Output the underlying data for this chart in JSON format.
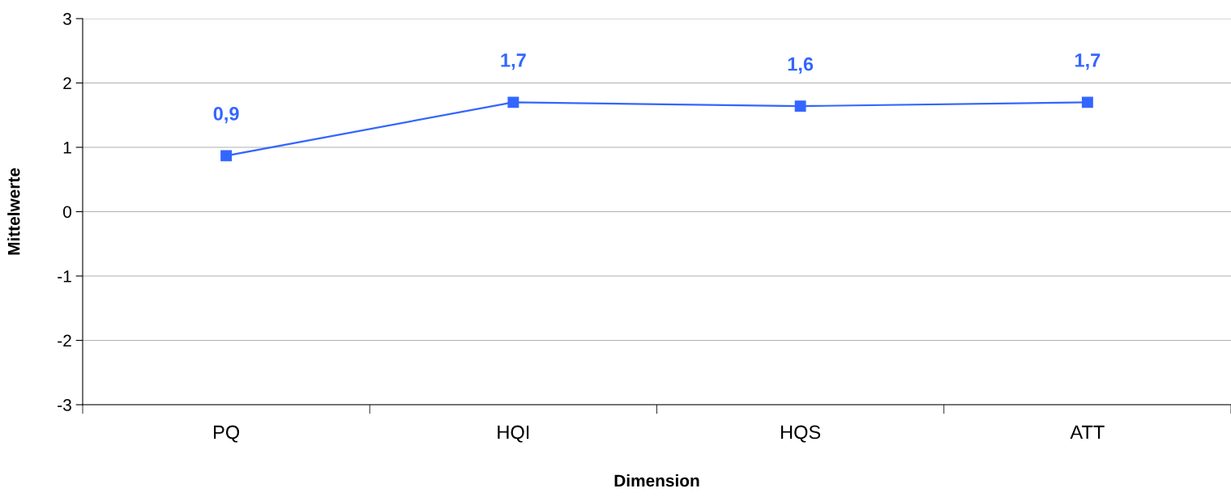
{
  "chart_data": {
    "type": "line",
    "xlabel": "Dimension",
    "ylabel": "Mittelwerte",
    "categories": [
      "PQ",
      "HQI",
      "HQS",
      "ATT"
    ],
    "series": [
      {
        "color": "#3366ff",
        "values": [
          0.87,
          1.7,
          1.64,
          1.7
        ],
        "value_labels": [
          "0,9",
          "1,7",
          "1,6",
          "1,7"
        ]
      }
    ],
    "ylim": [
      -3,
      3
    ],
    "yticks": [
      -3,
      -2,
      -1,
      0,
      1,
      2,
      3
    ],
    "grid": "y",
    "marker": "square",
    "line_style": "solid"
  }
}
